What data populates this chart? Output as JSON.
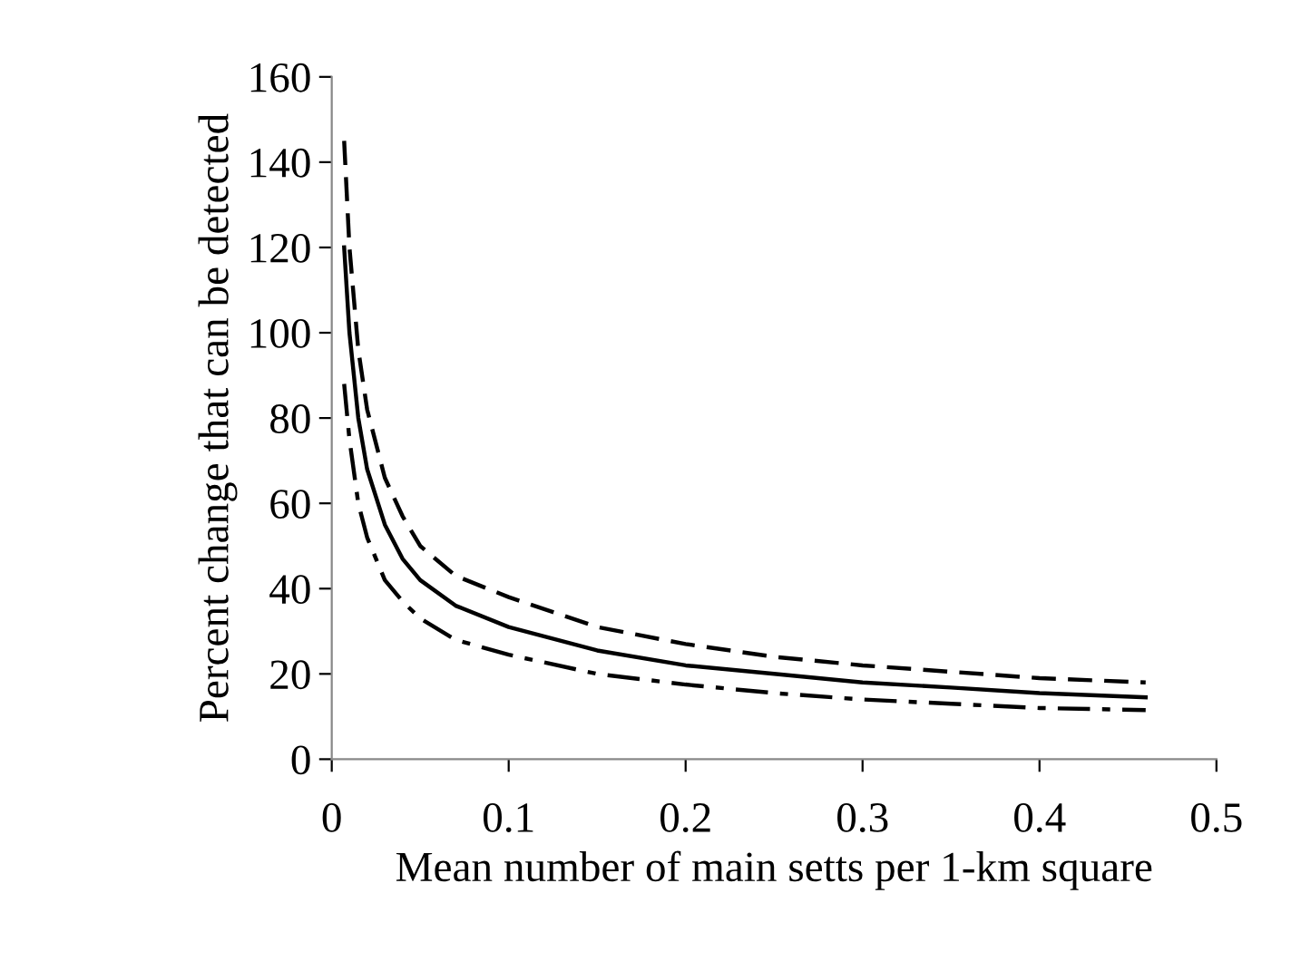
{
  "chart_data": {
    "type": "line",
    "xlabel": "Mean number of main setts per 1-km square",
    "ylabel": "Percent change that can be detected",
    "xlim": [
      0,
      0.5
    ],
    "xticks": [
      0,
      0.1,
      0.2,
      0.3,
      0.4,
      0.5
    ],
    "ylim": [
      0,
      160
    ],
    "yticks": [
      0,
      20,
      40,
      60,
      80,
      100,
      120,
      140,
      160
    ],
    "grid": false,
    "legend": false,
    "series": [
      {
        "color": "#000000",
        "line_style": "dashed",
        "x": [
          0.007,
          0.01,
          0.015,
          0.02,
          0.03,
          0.04,
          0.05,
          0.07,
          0.1,
          0.15,
          0.2,
          0.25,
          0.3,
          0.35,
          0.4,
          0.46
        ],
        "values": [
          145,
          120,
          96,
          82,
          66,
          57,
          50,
          43,
          38,
          31,
          27,
          24,
          22,
          20.5,
          19,
          18
        ]
      },
      {
        "color": "#000000",
        "line_style": "solid",
        "x": [
          0.007,
          0.01,
          0.015,
          0.02,
          0.03,
          0.04,
          0.05,
          0.07,
          0.1,
          0.15,
          0.2,
          0.25,
          0.3,
          0.35,
          0.4,
          0.46
        ],
        "values": [
          120,
          100,
          80,
          68,
          55,
          47,
          42,
          36,
          31,
          25.5,
          22,
          20,
          18,
          16.8,
          15.5,
          14.5
        ]
      },
      {
        "color": "#000000",
        "line_style": "dashdot",
        "x": [
          0.007,
          0.01,
          0.015,
          0.02,
          0.03,
          0.04,
          0.05,
          0.07,
          0.1,
          0.15,
          0.2,
          0.25,
          0.3,
          0.35,
          0.4,
          0.46
        ],
        "values": [
          88,
          75,
          60,
          52,
          42,
          37,
          33,
          28,
          24.5,
          20,
          17.5,
          15.5,
          14,
          13,
          12,
          11.5
        ]
      }
    ]
  }
}
